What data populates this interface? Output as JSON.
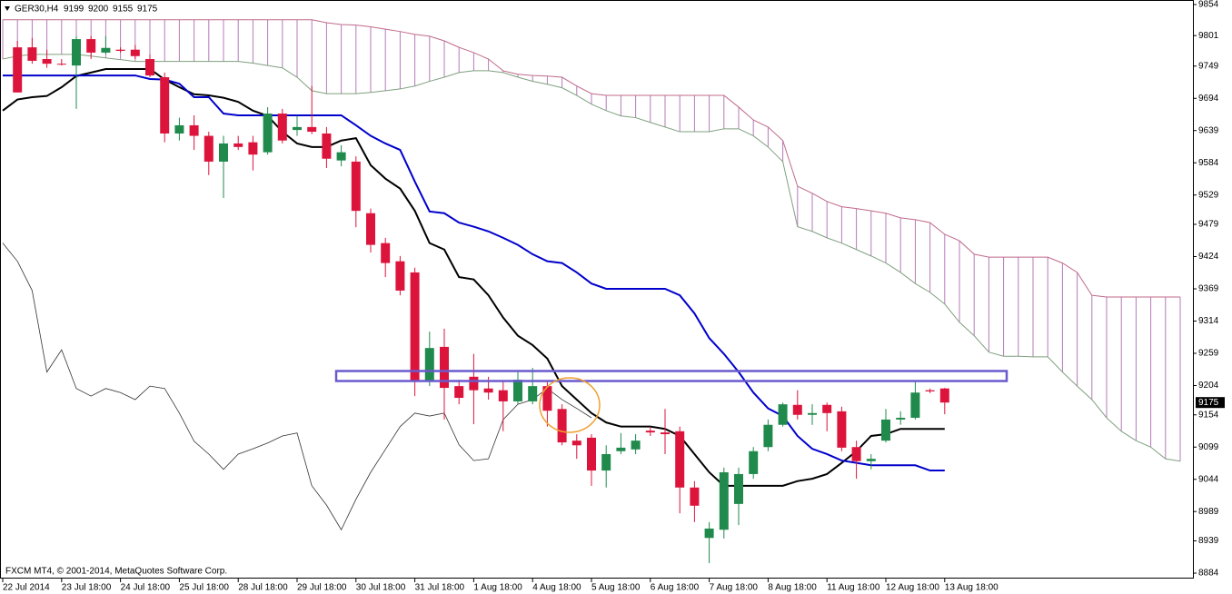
{
  "chart_data": {
    "type": "candlestick",
    "symbol": "GER30,H4",
    "footer": "FXCM MT4, © 2001-2014, MetaQuotes Software Corp.",
    "categories": [
      "22 Jul 2014",
      null,
      null,
      null,
      "23 Jul 18:00",
      null,
      null,
      null,
      "24 Jul 18:00",
      null,
      null,
      null,
      "25 Jul 18:00",
      null,
      null,
      null,
      "28 Jul 18:00",
      null,
      null,
      null,
      "29 Jul 18:00",
      null,
      null,
      null,
      "30 Jul 18:00",
      null,
      null,
      null,
      "31 Jul 18:00",
      null,
      null,
      null,
      "1 Aug 18:00",
      null,
      null,
      null,
      "4 Aug 18:00",
      null,
      null,
      null,
      "5 Aug 18:00",
      null,
      null,
      null,
      "6 Aug 18:00",
      null,
      null,
      null,
      "7 Aug 18:00",
      null,
      null,
      null,
      "8 Aug 18:00",
      null,
      null,
      null,
      "11 Aug 18:00",
      null,
      null,
      null,
      "12 Aug 18:00",
      null,
      null,
      null,
      "13 Aug 18:00",
      null,
      null,
      null,
      null,
      null,
      null,
      null,
      null,
      null,
      null,
      null,
      null,
      null,
      null,
      null,
      null
    ],
    "open": [
      null,
      9781,
      9781,
      9761,
      9753,
      9750,
      9795,
      9772,
      9777,
      9777,
      9761,
      9730,
      9634,
      9648,
      9630,
      9586,
      9617,
      9619,
      9602,
      9668,
      9640,
      9645,
      9634,
      9588,
      9586,
      9498,
      9447,
      9416,
      9397,
      9211,
      9270,
      9203,
      9219,
      9199,
      9196,
      9177,
      9177,
      9203,
      9164,
      9110,
      9115,
      9059,
      9092,
      9095,
      9127,
      9124,
      9126,
      9030,
      8944,
      8958,
      9002,
      9053,
      9099,
      9137,
      9171,
      9154,
      9171,
      9160,
      9099,
      9075,
      9110,
      9146,
      9149,
      9196,
      9199,
      null,
      null,
      null,
      null,
      null,
      null,
      null,
      null,
      null,
      null,
      null,
      null,
      null,
      null,
      null,
      null
    ],
    "high": [
      null,
      9792,
      9797,
      9777,
      9761,
      9800,
      9800,
      9800,
      9781,
      9785,
      9769,
      9738,
      9661,
      9665,
      9637,
      9630,
      9630,
      9630,
      9679,
      9676,
      9664,
      9715,
      9645,
      9614,
      9595,
      9506,
      9456,
      9425,
      9405,
      9296,
      9301,
      9214,
      9258,
      9219,
      9211,
      9227,
      9234,
      9211,
      9172,
      9121,
      9121,
      9102,
      9123,
      9121,
      9134,
      9164,
      9134,
      9041,
      8971,
      9064,
      9064,
      9099,
      9146,
      9175,
      9196,
      9172,
      9175,
      9168,
      9110,
      9087,
      9164,
      9160,
      9211,
      9199,
      9200,
      null,
      null,
      null,
      null,
      null,
      null,
      null,
      null,
      null,
      null,
      null,
      null,
      null,
      null,
      null,
      null
    ],
    "low": [
      null,
      9704,
      9753,
      9746,
      9750,
      9676,
      9761,
      9769,
      9772,
      9761,
      9730,
      9619,
      9622,
      9606,
      9563,
      9524,
      9606,
      9571,
      9598,
      9617,
      9630,
      9633,
      9575,
      9578,
      9474,
      9431,
      9389,
      9358,
      9186,
      9203,
      9146,
      9172,
      9138,
      9180,
      9126,
      9172,
      9172,
      9134,
      9102,
      9079,
      9033,
      9030,
      9087,
      9087,
      9118,
      9087,
      8986,
      8971,
      8901,
      8943,
      8966,
      9045,
      9092,
      9134,
      9146,
      9137,
      9126,
      9092,
      9045,
      9061,
      9107,
      9137,
      9146,
      9191,
      9155,
      null,
      null,
      null,
      null,
      null,
      null,
      null,
      null,
      null,
      null,
      null,
      null,
      null,
      null,
      null,
      null
    ],
    "close": [
      null,
      9704,
      9758,
      9753,
      9752,
      9795,
      9772,
      9780,
      9775,
      9766,
      9733,
      9634,
      9648,
      9630,
      9586,
      9617,
      9611,
      9598,
      9668,
      9622,
      9645,
      9637,
      9591,
      9602,
      9502,
      9444,
      9413,
      9366,
      9211,
      9268,
      9200,
      9183,
      9196,
      9192,
      9177,
      9214,
      9203,
      9161,
      9107,
      9102,
      9059,
      9087,
      9098,
      9110,
      9124,
      9121,
      9030,
      8999,
      8960,
      9056,
      9053,
      9092,
      9137,
      9172,
      9154,
      9157,
      9157,
      9098,
      9075,
      9079,
      9146,
      9149,
      9192,
      9194,
      9175,
      null,
      null,
      null,
      null,
      null,
      null,
      null,
      null,
      null,
      null,
      null,
      null,
      null,
      null,
      null,
      null
    ],
    "up_color": "#1f8a4c",
    "down_color": "#dc143c",
    "series": [
      {
        "color": "#000000",
        "width": 2,
        "values": [
          9673,
          9692,
          9696,
          9698,
          9713,
          9732,
          9738,
          9744,
          9744,
          9744,
          9744,
          9726,
          9713,
          9701,
          9699,
          9695,
          9688,
          9673,
          9664,
          9637,
          9617,
          9611,
          9611,
          9622,
          9626,
          9580,
          9557,
          9540,
          9502,
          9447,
          9436,
          9389,
          9385,
          9358,
          9320,
          9289,
          9273,
          9250,
          9203,
          9180,
          9157,
          9141,
          9134,
          9134,
          9134,
          9130,
          9118,
          9087,
          9056,
          9033,
          9033,
          9033,
          9033,
          9033,
          9041,
          9045,
          9053,
          9072,
          9092,
          9118,
          9121,
          9130,
          9130,
          9130,
          9130,
          null,
          null,
          null,
          null,
          null,
          null,
          null,
          null,
          null,
          null,
          null,
          null,
          null,
          null,
          null,
          null
        ]
      },
      {
        "color": "#0000cc",
        "width": 2,
        "values": [
          9733,
          9733,
          9733,
          9733,
          9733,
          9733,
          9733,
          9733,
          9733,
          9733,
          9727,
          9726,
          9719,
          9696,
          9696,
          9668,
          9665,
          9665,
          9665,
          9665,
          9665,
          9665,
          9665,
          9665,
          9648,
          9630,
          9617,
          9606,
          9552,
          9501,
          9498,
          9482,
          9475,
          9467,
          9456,
          9444,
          9428,
          9416,
          9413,
          9397,
          9378,
          9369,
          9369,
          9369,
          9369,
          9369,
          9358,
          9327,
          9285,
          9258,
          9227,
          9192,
          9165,
          9152,
          9118,
          9096,
          9087,
          9076,
          9072,
          9068,
          9068,
          9068,
          9068,
          9059,
          9059,
          null,
          null,
          null,
          null,
          null,
          null,
          null,
          null,
          null,
          null,
          null,
          null,
          null,
          null,
          null,
          null
        ]
      },
      {
        "color": "#333333",
        "width": 0.8,
        "values": [
          9447,
          9416,
          9366,
          9227,
          9265,
          9199,
          9186,
          9199,
          9192,
          9180,
          9203,
          9199,
          9157,
          9109,
          9087,
          9061,
          9087,
          9096,
          9106,
          9118,
          9123,
          9033,
          9000,
          8958,
          9010,
          9056,
          9095,
          9134,
          9157,
          9152,
          9157,
          9103,
          9076,
          9079,
          9146,
          9172,
          9180,
          9199,
          9180,
          9165,
          9149,
          null,
          null,
          null,
          null,
          null,
          null,
          null,
          null,
          null,
          null,
          null,
          null,
          null,
          null,
          null,
          null,
          null,
          null,
          null,
          null,
          null,
          null,
          null,
          null,
          null,
          null,
          null,
          null,
          null,
          null,
          null,
          null,
          null,
          null,
          null,
          null,
          null,
          null,
          null,
          null
        ]
      },
      {
        "color": "#c06a8a",
        "width": 1,
        "values": [
          9828,
          9828,
          9828,
          9828,
          9828,
          9828,
          9828,
          9828,
          9828,
          9828,
          9828,
          9828,
          9828,
          9828,
          9828,
          9828,
          9828,
          9828,
          9828,
          9828,
          9828,
          9828,
          9823,
          9820,
          9819,
          9816,
          9812,
          9808,
          9803,
          9800,
          9792,
          9781,
          9772,
          9761,
          9741,
          9735,
          9733,
          9732,
          9730,
          9715,
          9702,
          9699,
          9699,
          9699,
          9699,
          9699,
          9699,
          9699,
          9699,
          9699,
          9679,
          9657,
          9645,
          9622,
          9544,
          9532,
          9518,
          9509,
          9506,
          9502,
          9498,
          9490,
          9487,
          9482,
          9462,
          9451,
          9428,
          9423,
          9423,
          9423,
          9423,
          9423,
          9413,
          9397,
          9358,
          9355,
          9355,
          9355,
          9355,
          9355,
          9355
        ]
      },
      {
        "color": "#7fa07f",
        "width": 1,
        "values": [
          9761,
          9766,
          9769,
          9769,
          9769,
          9769,
          9766,
          9763,
          9760,
          9757,
          9757,
          9757,
          9757,
          9757,
          9757,
          9757,
          9757,
          9754,
          9750,
          9746,
          9730,
          9707,
          9702,
          9702,
          9702,
          9704,
          9707,
          9710,
          9715,
          9723,
          9730,
          9738,
          9741,
          9741,
          9738,
          9730,
          9723,
          9718,
          9712,
          9699,
          9684,
          9673,
          9664,
          9661,
          9653,
          9645,
          9637,
          9637,
          9637,
          9642,
          9642,
          9630,
          9611,
          9586,
          9475,
          9467,
          9456,
          9447,
          9436,
          9425,
          9413,
          9397,
          9378,
          9363,
          9343,
          9312,
          9289,
          9261,
          9254,
          9254,
          9253,
          9253,
          9227,
          9203,
          9180,
          9149,
          9126,
          9110,
          9099,
          9079,
          9075
        ]
      }
    ],
    "cloud": {
      "series": [
        3,
        4
      ],
      "color": "#b47ab8"
    },
    "ylim": [
      8884,
      9854
    ],
    "yticks": [
      9854,
      9801,
      9749,
      9694,
      9639,
      9584,
      9529,
      9479,
      9424,
      9369,
      9314,
      9259,
      9204,
      9154,
      9099,
      9044,
      8989,
      8939,
      8884
    ],
    "grid": false
  }
}
